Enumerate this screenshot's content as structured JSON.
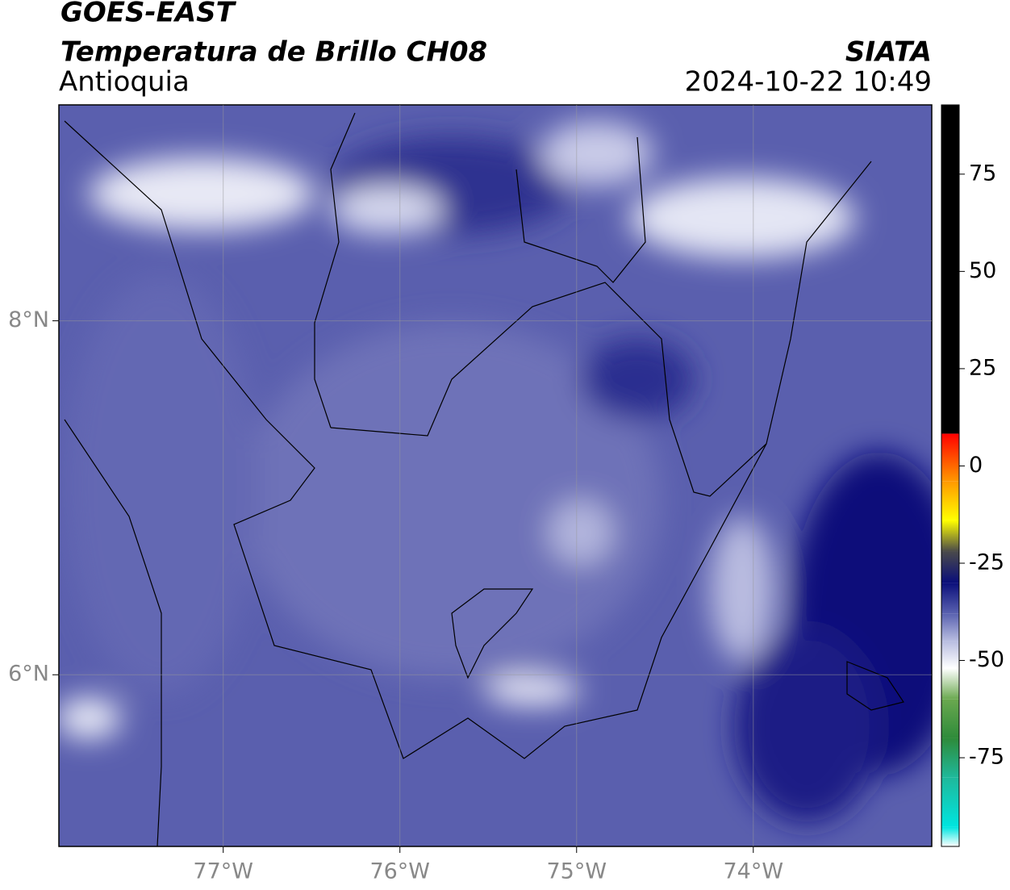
{
  "header": {
    "title": "GOES-EAST",
    "subtitle": "Temperatura de Brillo CH08",
    "region": "Antioquia",
    "source": "SIATA",
    "datetime": "2024-10-22 10:49"
  },
  "map": {
    "xlim": [
      -77.93,
      -72.99
    ],
    "ylim": [
      5.03,
      9.22
    ],
    "xticks": [
      {
        "value": -77,
        "label": "77°W"
      },
      {
        "value": -76,
        "label": "76°W"
      },
      {
        "value": -75,
        "label": "75°W"
      },
      {
        "value": -74,
        "label": "74°W"
      }
    ],
    "yticks": [
      {
        "value": 6,
        "label": "6°N"
      },
      {
        "value": 8,
        "label": "8°N"
      }
    ],
    "grid": true
  },
  "colorbar": {
    "lim": [
      -97.8,
      92.8
    ],
    "ticks": [
      75,
      50,
      25,
      0,
      -25,
      -50,
      -75
    ],
    "stops": [
      [
        -97.8,
        "#ffffff"
      ],
      [
        -92.8,
        "#00e5e0"
      ],
      [
        -80,
        "#1fb89a"
      ],
      [
        -70,
        "#2e8b3a"
      ],
      [
        -60,
        "#6aa84f"
      ],
      [
        -52,
        "#ffffff"
      ],
      [
        -45,
        "#b8bde0"
      ],
      [
        -38,
        "#5a62b0"
      ],
      [
        -30,
        "#0a0e7a"
      ],
      [
        -22,
        "#4a4a4a"
      ],
      [
        -14,
        "#ffff00"
      ],
      [
        -4,
        "#ff9900"
      ],
      [
        8.3,
        "#ff0000"
      ],
      [
        8.3,
        "#000000"
      ],
      [
        92.8,
        "#000000"
      ]
    ]
  }
}
